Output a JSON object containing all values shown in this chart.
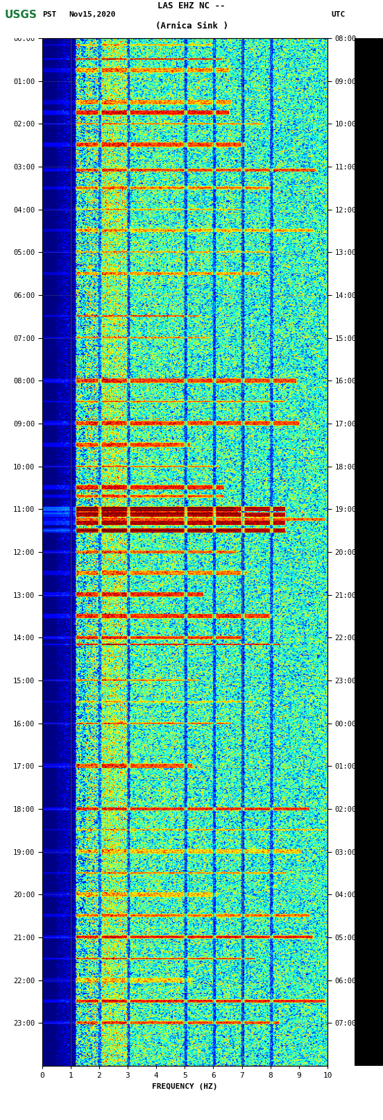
{
  "title_line1": "LAS EHZ NC --",
  "title_line2": "(Arnica Sink )",
  "left_label": "PST",
  "date_label": "Nov15,2020",
  "right_label": "UTC",
  "xlabel": "FREQUENCY (HZ)",
  "pst_times": [
    "00:00",
    "01:00",
    "02:00",
    "03:00",
    "04:00",
    "05:00",
    "06:00",
    "07:00",
    "08:00",
    "09:00",
    "10:00",
    "11:00",
    "12:00",
    "13:00",
    "14:00",
    "15:00",
    "16:00",
    "17:00",
    "18:00",
    "19:00",
    "20:00",
    "21:00",
    "22:00",
    "23:00"
  ],
  "utc_times": [
    "08:00",
    "09:00",
    "10:00",
    "11:00",
    "12:00",
    "13:00",
    "14:00",
    "15:00",
    "16:00",
    "17:00",
    "18:00",
    "19:00",
    "20:00",
    "21:00",
    "22:00",
    "23:00",
    "00:00",
    "01:00",
    "02:00",
    "03:00",
    "04:00",
    "05:00",
    "06:00",
    "07:00"
  ],
  "freq_min": 0,
  "freq_max": 10,
  "time_hours": 24,
  "background_color": "#ffffff",
  "colorbar_bg": "#000000",
  "plot_bg": "#000000",
  "vertical_lines_freq": [
    1.0,
    2.0,
    3.0,
    5.0,
    6.0,
    7.0,
    8.0
  ],
  "vertical_line_color": "#555555",
  "seed": 42,
  "noise_scale": 0.8,
  "low_freq_boost": 2.5,
  "special_event_times": [
    0.17,
    0.5,
    0.75,
    1.5,
    1.75,
    2.0,
    2.5,
    3.08,
    3.5,
    4.0,
    4.5,
    5.0,
    5.5,
    6.5,
    7.0,
    8.0,
    8.5,
    9.0,
    9.5,
    10.0,
    10.5,
    10.7,
    11.0,
    11.08,
    11.25,
    11.5,
    12.0,
    12.5,
    13.0,
    13.5,
    14.0,
    14.17,
    15.0,
    15.5,
    16.0,
    17.0,
    18.0,
    18.5,
    19.0,
    19.5,
    20.0,
    20.5,
    21.0,
    21.5,
    22.0,
    22.5,
    23.0
  ],
  "marker_color_bright": [
    255,
    200,
    0
  ],
  "marker_color_red": [
    220,
    50,
    0
  ]
}
